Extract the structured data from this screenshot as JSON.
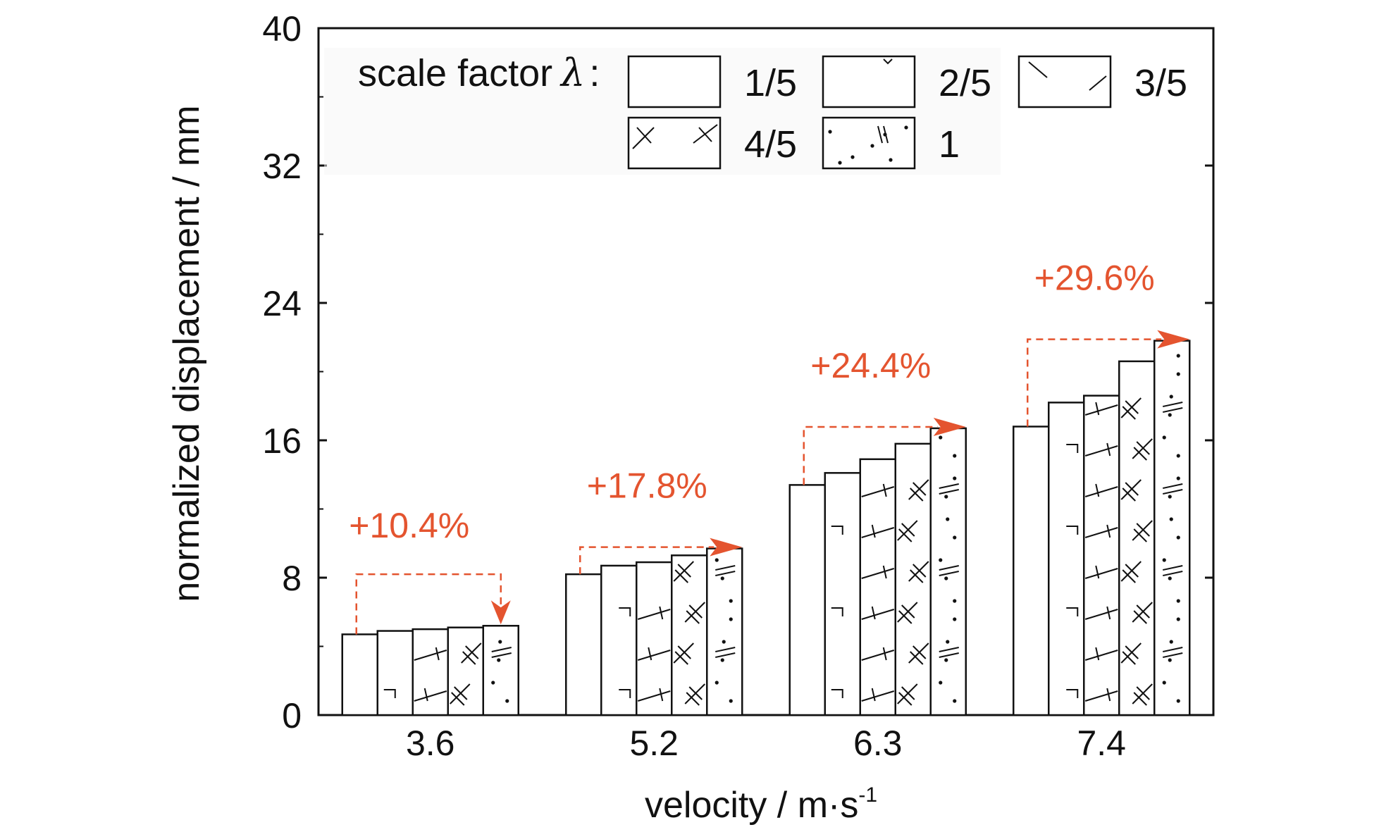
{
  "chart_data": {
    "type": "bar",
    "xlabel": "velocity / m·s",
    "xlabel_sup": "-1",
    "ylabel": "normalized displacement / mm",
    "ylim": [
      0,
      40
    ],
    "yticks": [
      "0",
      "8",
      "16",
      "24",
      "32",
      "40"
    ],
    "categories": [
      "3.6",
      "5.2",
      "6.3",
      "7.4"
    ],
    "legend_title": "scale factor",
    "legend_symbol": "λ",
    "legend_colon": ":",
    "series": [
      {
        "name": "1/5",
        "values": [
          4.7,
          8.2,
          13.4,
          16.8
        ]
      },
      {
        "name": "2/5",
        "values": [
          4.9,
          8.7,
          14.1,
          18.2
        ]
      },
      {
        "name": "3/5",
        "values": [
          5.0,
          8.9,
          14.9,
          18.6
        ]
      },
      {
        "name": "4/5",
        "values": [
          5.1,
          9.3,
          15.8,
          20.6
        ]
      },
      {
        "name": "1",
        "values": [
          5.2,
          9.7,
          16.7,
          21.8
        ]
      }
    ],
    "annotations": [
      "+10.4%",
      "+17.8%",
      "+24.4%",
      "+29.6%"
    ],
    "colors": {
      "annotation": "#E4542F",
      "bar_fill": "#ffffff",
      "bar_stroke": "#111111"
    }
  }
}
